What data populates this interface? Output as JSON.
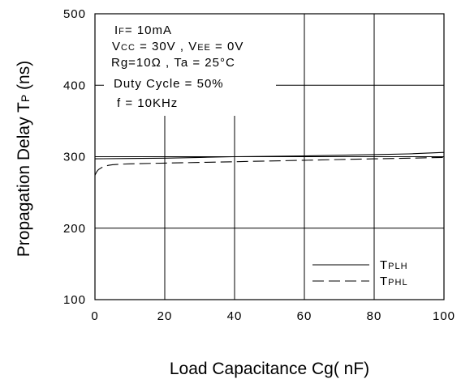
{
  "chart_data": {
    "type": "line",
    "xlabel": "Load Capacitance Cg( nF)",
    "ylabel": {
      "main": "Propagation Delay T",
      "sub": "P",
      "unit": " (ns)"
    },
    "xlim": [
      0,
      100
    ],
    "ylim": [
      100,
      500
    ],
    "x_ticks": [
      "0",
      "20",
      "40",
      "60",
      "80",
      "100"
    ],
    "y_ticks": [
      "100",
      "200",
      "300",
      "400",
      "500"
    ],
    "grid": true,
    "conditions": [
      [
        {
          "t": "I"
        },
        {
          "t": "F",
          "sub": true
        },
        {
          "t": "= 10mA"
        }
      ],
      [
        {
          "t": "V"
        },
        {
          "t": "CC",
          "sub": true
        },
        {
          "t": " = 30V , V"
        },
        {
          "t": "EE",
          "sub": true
        },
        {
          "t": " = 0V"
        }
      ],
      [
        {
          "t": "Rg=10Ω , Ta = 25°C"
        }
      ],
      [
        {
          "t": "Duty Cycle = 50%"
        }
      ],
      [
        {
          "t": "f = 10KHz"
        }
      ]
    ],
    "legend_position": "bottom-right",
    "series": [
      {
        "name": {
          "main": "T",
          "sub": "PLH"
        },
        "style": "solid",
        "x": [
          0,
          10,
          20,
          30,
          40,
          50,
          60,
          70,
          80,
          90,
          100
        ],
        "y": [
          297,
          297.5,
          298,
          299,
          300,
          300.5,
          301,
          302,
          303,
          304,
          306
        ]
      },
      {
        "name": {
          "main": "T",
          "sub": "PHL"
        },
        "style": "dashed",
        "x": [
          0,
          0.5,
          1,
          2,
          3,
          4,
          5,
          7,
          10,
          20,
          30,
          40,
          50,
          60,
          70,
          80,
          90,
          100
        ],
        "y": [
          274,
          279,
          282,
          285,
          287,
          288,
          288.8,
          289.5,
          290,
          291,
          292,
          293,
          294,
          295,
          296,
          297,
          298,
          299
        ]
      }
    ]
  }
}
